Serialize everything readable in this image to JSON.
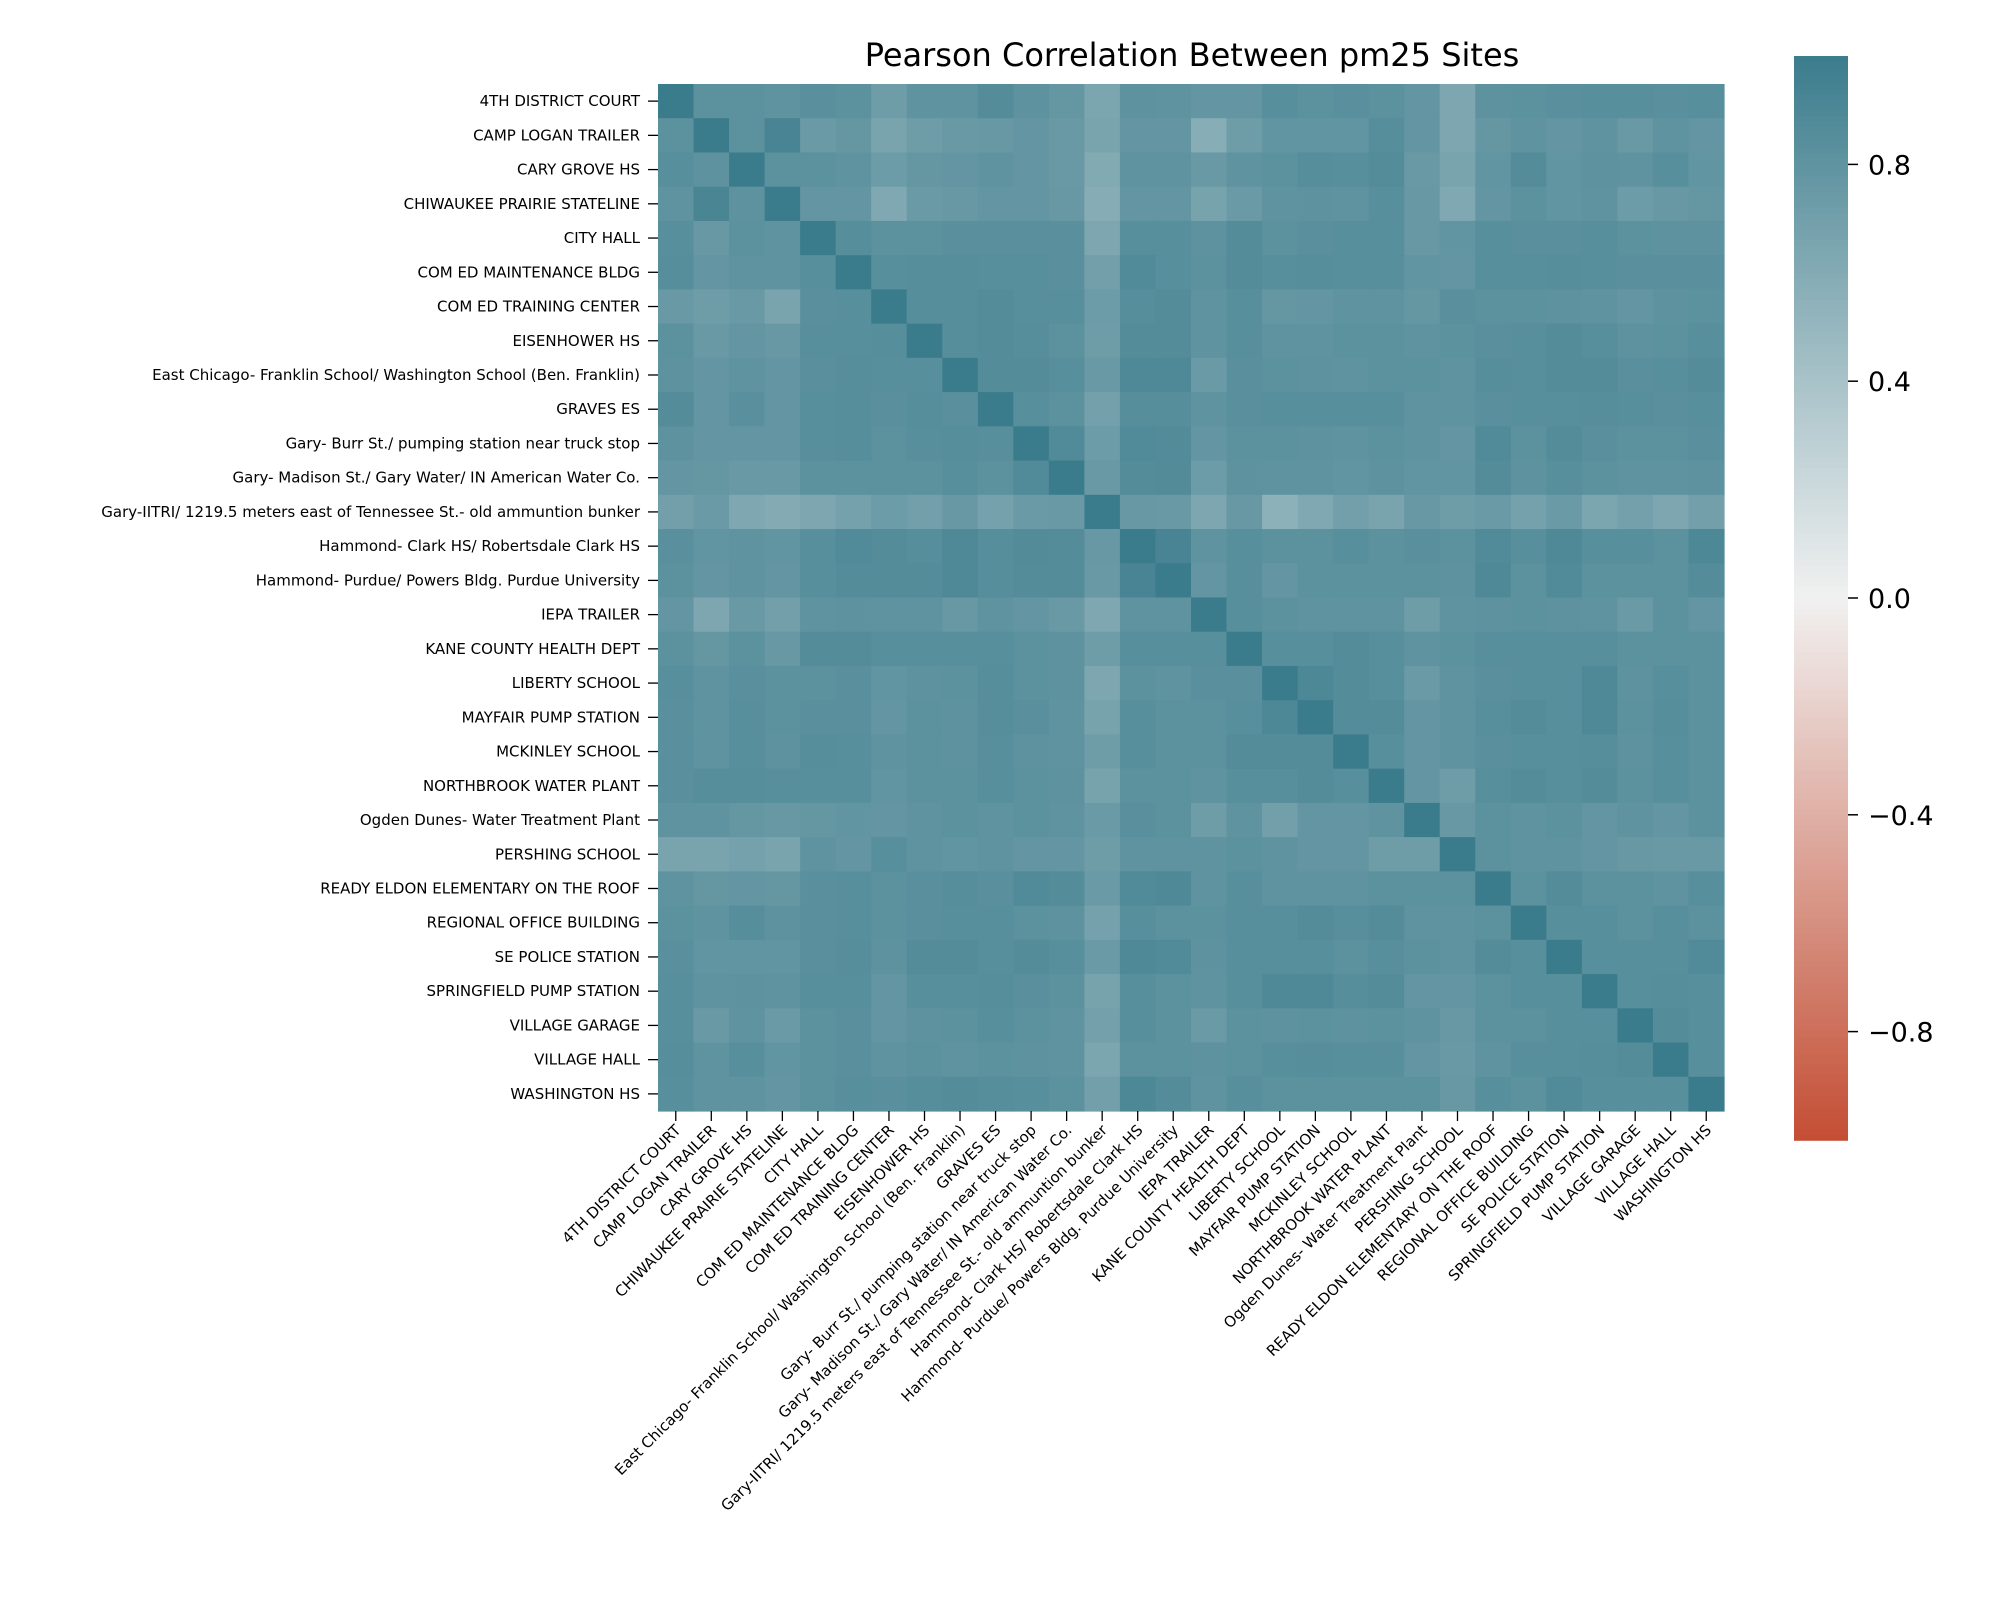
{
  "chart_data": {
    "type": "heatmap",
    "title": "Pearson Correlation Between pm25 Sites",
    "labels": [
      "4TH DISTRICT COURT",
      "CAMP LOGAN TRAILER",
      "CARY GROVE HS",
      "CHIWAUKEE PRAIRIE STATELINE",
      "CITY HALL",
      "COM ED MAINTENANCE BLDG",
      "COM ED TRAINING CENTER",
      "EISENHOWER HS",
      "East Chicago- Franklin School/ Washington School (Ben. Franklin)",
      "GRAVES ES",
      "Gary- Burr St./ pumping station near truck stop",
      "Gary- Madison St./ Gary Water/ IN American Water Co.",
      "Gary-IITRI/ 1219.5 meters east of Tennessee St.- old ammuntion bunker",
      "Hammond- Clark HS/ Robertsdale Clark HS",
      "Hammond- Purdue/ Powers Bldg. Purdue University",
      "IEPA TRAILER",
      "KANE COUNTY HEALTH DEPT",
      "LIBERTY SCHOOL",
      "MAYFAIR PUMP STATION",
      "MCKINLEY SCHOOL",
      "NORTHBROOK WATER PLANT",
      "Ogden Dunes- Water Treatment Plant",
      "PERSHING SCHOOL",
      "READY ELDON ELEMENTARY ON THE ROOF",
      "REGIONAL OFFICE BUILDING",
      "SE POLICE STATION",
      "SPRINGFIELD PUMP STATION",
      "VILLAGE GARAGE",
      "VILLAGE HALL",
      "WASHINGTON HS"
    ],
    "matrix": [
      [
        1.0,
        0.82,
        0.82,
        0.8,
        0.83,
        0.82,
        0.72,
        0.8,
        0.8,
        0.86,
        0.81,
        0.77,
        0.65,
        0.81,
        0.8,
        0.78,
        0.78,
        0.84,
        0.82,
        0.83,
        0.82,
        0.78,
        0.64,
        0.81,
        0.82,
        0.83,
        0.84,
        0.84,
        0.83,
        0.84
      ],
      [
        0.82,
        1.0,
        0.82,
        0.93,
        0.74,
        0.77,
        0.66,
        0.72,
        0.75,
        0.76,
        0.78,
        0.75,
        0.66,
        0.78,
        0.78,
        0.58,
        0.72,
        0.79,
        0.79,
        0.79,
        0.85,
        0.78,
        0.64,
        0.77,
        0.8,
        0.78,
        0.8,
        0.75,
        0.8,
        0.78
      ],
      [
        0.84,
        0.81,
        1.0,
        0.82,
        0.82,
        0.8,
        0.73,
        0.77,
        0.78,
        0.8,
        0.78,
        0.75,
        0.61,
        0.8,
        0.8,
        0.75,
        0.8,
        0.82,
        0.85,
        0.84,
        0.86,
        0.75,
        0.66,
        0.79,
        0.86,
        0.79,
        0.81,
        0.8,
        0.84,
        0.79
      ],
      [
        0.8,
        0.92,
        0.81,
        1.0,
        0.78,
        0.78,
        0.62,
        0.74,
        0.76,
        0.78,
        0.78,
        0.76,
        0.59,
        0.78,
        0.78,
        0.67,
        0.74,
        0.8,
        0.81,
        0.8,
        0.84,
        0.76,
        0.62,
        0.78,
        0.82,
        0.79,
        0.8,
        0.73,
        0.76,
        0.77
      ],
      [
        0.84,
        0.76,
        0.82,
        0.8,
        1.0,
        0.85,
        0.82,
        0.82,
        0.83,
        0.83,
        0.83,
        0.83,
        0.64,
        0.84,
        0.84,
        0.81,
        0.86,
        0.82,
        0.83,
        0.84,
        0.84,
        0.76,
        0.79,
        0.84,
        0.83,
        0.83,
        0.84,
        0.82,
        0.81,
        0.81
      ],
      [
        0.85,
        0.78,
        0.8,
        0.8,
        0.84,
        1.0,
        0.84,
        0.85,
        0.85,
        0.84,
        0.84,
        0.83,
        0.7,
        0.88,
        0.84,
        0.82,
        0.86,
        0.84,
        0.85,
        0.84,
        0.84,
        0.79,
        0.78,
        0.84,
        0.84,
        0.85,
        0.84,
        0.83,
        0.83,
        0.83
      ],
      [
        0.75,
        0.72,
        0.75,
        0.66,
        0.83,
        0.84,
        1.0,
        0.85,
        0.85,
        0.86,
        0.84,
        0.84,
        0.73,
        0.85,
        0.86,
        0.8,
        0.84,
        0.77,
        0.78,
        0.8,
        0.8,
        0.77,
        0.83,
        0.82,
        0.82,
        0.81,
        0.8,
        0.78,
        0.81,
        0.82
      ],
      [
        0.82,
        0.75,
        0.78,
        0.76,
        0.84,
        0.84,
        0.85,
        1.0,
        0.85,
        0.86,
        0.85,
        0.82,
        0.72,
        0.86,
        0.86,
        0.8,
        0.84,
        0.8,
        0.8,
        0.82,
        0.82,
        0.8,
        0.82,
        0.83,
        0.84,
        0.86,
        0.84,
        0.81,
        0.82,
        0.84
      ],
      [
        0.81,
        0.78,
        0.8,
        0.78,
        0.83,
        0.85,
        0.84,
        0.84,
        1.0,
        0.86,
        0.86,
        0.84,
        0.75,
        0.89,
        0.89,
        0.74,
        0.83,
        0.82,
        0.81,
        0.8,
        0.82,
        0.82,
        0.8,
        0.85,
        0.84,
        0.86,
        0.86,
        0.83,
        0.84,
        0.86
      ],
      [
        0.86,
        0.78,
        0.83,
        0.78,
        0.84,
        0.85,
        0.83,
        0.85,
        0.83,
        1.0,
        0.84,
        0.82,
        0.69,
        0.85,
        0.85,
        0.8,
        0.83,
        0.84,
        0.84,
        0.84,
        0.84,
        0.8,
        0.8,
        0.83,
        0.84,
        0.84,
        0.85,
        0.84,
        0.83,
        0.84
      ],
      [
        0.81,
        0.78,
        0.78,
        0.78,
        0.84,
        0.85,
        0.82,
        0.84,
        0.85,
        0.84,
        1.0,
        0.88,
        0.73,
        0.88,
        0.87,
        0.78,
        0.82,
        0.82,
        0.81,
        0.8,
        0.82,
        0.8,
        0.78,
        0.88,
        0.82,
        0.86,
        0.83,
        0.82,
        0.82,
        0.83
      ],
      [
        0.78,
        0.77,
        0.75,
        0.75,
        0.82,
        0.82,
        0.82,
        0.82,
        0.84,
        0.82,
        0.88,
        1.0,
        0.75,
        0.86,
        0.87,
        0.73,
        0.81,
        0.8,
        0.8,
        0.79,
        0.81,
        0.79,
        0.79,
        0.86,
        0.81,
        0.84,
        0.82,
        0.8,
        0.8,
        0.81
      ],
      [
        0.7,
        0.74,
        0.63,
        0.6,
        0.64,
        0.68,
        0.73,
        0.7,
        0.76,
        0.68,
        0.74,
        0.75,
        1.0,
        0.76,
        0.75,
        0.64,
        0.76,
        0.55,
        0.62,
        0.7,
        0.66,
        0.76,
        0.72,
        0.74,
        0.68,
        0.74,
        0.65,
        0.69,
        0.64,
        0.7
      ],
      [
        0.83,
        0.79,
        0.8,
        0.79,
        0.84,
        0.88,
        0.86,
        0.85,
        0.89,
        0.85,
        0.87,
        0.86,
        0.76,
        1.0,
        0.93,
        0.8,
        0.84,
        0.82,
        0.82,
        0.84,
        0.82,
        0.83,
        0.82,
        0.88,
        0.84,
        0.89,
        0.84,
        0.84,
        0.82,
        0.9
      ],
      [
        0.82,
        0.78,
        0.8,
        0.78,
        0.84,
        0.86,
        0.86,
        0.86,
        0.89,
        0.85,
        0.86,
        0.86,
        0.75,
        0.93,
        1.0,
        0.78,
        0.84,
        0.78,
        0.82,
        0.82,
        0.82,
        0.82,
        0.81,
        0.89,
        0.82,
        0.88,
        0.82,
        0.82,
        0.82,
        0.86
      ],
      [
        0.78,
        0.64,
        0.75,
        0.7,
        0.8,
        0.81,
        0.8,
        0.8,
        0.76,
        0.8,
        0.78,
        0.75,
        0.63,
        0.8,
        0.8,
        1.0,
        0.84,
        0.82,
        0.8,
        0.8,
        0.8,
        0.72,
        0.8,
        0.81,
        0.82,
        0.81,
        0.8,
        0.74,
        0.82,
        0.78
      ],
      [
        0.82,
        0.77,
        0.82,
        0.76,
        0.86,
        0.86,
        0.84,
        0.84,
        0.84,
        0.84,
        0.82,
        0.81,
        0.72,
        0.84,
        0.84,
        0.84,
        1.0,
        0.84,
        0.84,
        0.86,
        0.84,
        0.8,
        0.82,
        0.84,
        0.84,
        0.84,
        0.84,
        0.82,
        0.82,
        0.82
      ],
      [
        0.84,
        0.8,
        0.83,
        0.82,
        0.82,
        0.83,
        0.79,
        0.81,
        0.82,
        0.85,
        0.82,
        0.81,
        0.64,
        0.82,
        0.8,
        0.83,
        0.83,
        1.0,
        0.9,
        0.86,
        0.84,
        0.74,
        0.8,
        0.83,
        0.84,
        0.84,
        0.89,
        0.81,
        0.84,
        0.82
      ],
      [
        0.83,
        0.8,
        0.84,
        0.82,
        0.83,
        0.83,
        0.78,
        0.82,
        0.81,
        0.85,
        0.83,
        0.8,
        0.67,
        0.84,
        0.82,
        0.82,
        0.84,
        0.9,
        1.0,
        0.86,
        0.86,
        0.78,
        0.8,
        0.84,
        0.86,
        0.84,
        0.89,
        0.82,
        0.85,
        0.82
      ],
      [
        0.83,
        0.8,
        0.84,
        0.81,
        0.85,
        0.84,
        0.8,
        0.82,
        0.81,
        0.84,
        0.81,
        0.8,
        0.72,
        0.84,
        0.82,
        0.82,
        0.86,
        0.86,
        0.86,
        1.0,
        0.84,
        0.78,
        0.8,
        0.83,
        0.84,
        0.84,
        0.85,
        0.81,
        0.84,
        0.82
      ],
      [
        0.83,
        0.85,
        0.85,
        0.84,
        0.84,
        0.84,
        0.79,
        0.82,
        0.82,
        0.84,
        0.82,
        0.81,
        0.67,
        0.82,
        0.82,
        0.8,
        0.84,
        0.84,
        0.86,
        0.84,
        1.0,
        0.78,
        0.72,
        0.84,
        0.86,
        0.84,
        0.86,
        0.82,
        0.84,
        0.82
      ],
      [
        0.8,
        0.8,
        0.77,
        0.76,
        0.77,
        0.79,
        0.78,
        0.8,
        0.82,
        0.8,
        0.82,
        0.8,
        0.74,
        0.83,
        0.82,
        0.72,
        0.8,
        0.7,
        0.78,
        0.78,
        0.8,
        1.0,
        0.76,
        0.82,
        0.8,
        0.82,
        0.78,
        0.8,
        0.78,
        0.82
      ],
      [
        0.66,
        0.66,
        0.68,
        0.66,
        0.8,
        0.78,
        0.84,
        0.8,
        0.79,
        0.8,
        0.78,
        0.78,
        0.72,
        0.8,
        0.8,
        0.8,
        0.82,
        0.8,
        0.78,
        0.78,
        0.72,
        0.72,
        1.0,
        0.82,
        0.8,
        0.8,
        0.78,
        0.76,
        0.75,
        0.75
      ],
      [
        0.8,
        0.77,
        0.78,
        0.77,
        0.83,
        0.84,
        0.82,
        0.83,
        0.85,
        0.83,
        0.88,
        0.86,
        0.74,
        0.88,
        0.89,
        0.8,
        0.84,
        0.8,
        0.8,
        0.8,
        0.82,
        0.82,
        0.82,
        1.0,
        0.82,
        0.86,
        0.82,
        0.82,
        0.8,
        0.84
      ],
      [
        0.82,
        0.8,
        0.85,
        0.81,
        0.83,
        0.84,
        0.82,
        0.83,
        0.84,
        0.84,
        0.82,
        0.81,
        0.68,
        0.84,
        0.82,
        0.82,
        0.84,
        0.84,
        0.86,
        0.84,
        0.86,
        0.8,
        0.8,
        0.82,
        1.0,
        0.84,
        0.84,
        0.82,
        0.84,
        0.82
      ],
      [
        0.83,
        0.79,
        0.79,
        0.79,
        0.83,
        0.85,
        0.81,
        0.86,
        0.86,
        0.84,
        0.86,
        0.84,
        0.74,
        0.89,
        0.88,
        0.81,
        0.84,
        0.84,
        0.84,
        0.82,
        0.84,
        0.82,
        0.8,
        0.86,
        0.84,
        1.0,
        0.84,
        0.84,
        0.84,
        0.88
      ],
      [
        0.84,
        0.8,
        0.81,
        0.8,
        0.84,
        0.84,
        0.78,
        0.84,
        0.84,
        0.85,
        0.83,
        0.82,
        0.67,
        0.84,
        0.82,
        0.8,
        0.84,
        0.89,
        0.89,
        0.85,
        0.86,
        0.78,
        0.78,
        0.82,
        0.84,
        0.84,
        1.0,
        0.84,
        0.85,
        0.84
      ],
      [
        0.84,
        0.75,
        0.8,
        0.74,
        0.82,
        0.83,
        0.78,
        0.81,
        0.82,
        0.84,
        0.82,
        0.8,
        0.69,
        0.84,
        0.82,
        0.74,
        0.82,
        0.81,
        0.82,
        0.81,
        0.82,
        0.8,
        0.76,
        0.82,
        0.82,
        0.84,
        0.84,
        1.0,
        0.86,
        0.84
      ],
      [
        0.85,
        0.8,
        0.84,
        0.79,
        0.82,
        0.83,
        0.8,
        0.82,
        0.8,
        0.82,
        0.81,
        0.8,
        0.65,
        0.82,
        0.82,
        0.81,
        0.82,
        0.84,
        0.85,
        0.84,
        0.84,
        0.78,
        0.75,
        0.8,
        0.84,
        0.84,
        0.85,
        0.86,
        1.0,
        0.84
      ],
      [
        0.84,
        0.8,
        0.8,
        0.78,
        0.82,
        0.84,
        0.83,
        0.85,
        0.86,
        0.85,
        0.84,
        0.82,
        0.7,
        0.9,
        0.86,
        0.8,
        0.84,
        0.82,
        0.82,
        0.82,
        0.82,
        0.82,
        0.76,
        0.84,
        0.82,
        0.88,
        0.84,
        0.84,
        0.84,
        1.0
      ]
    ],
    "colorbar": {
      "range": [
        -1,
        1
      ],
      "ticks": [
        0.8,
        0.4,
        0.0,
        -0.4,
        -0.8
      ],
      "tick_labels": [
        "0.8",
        "0.4",
        "0.0",
        "−0.4",
        "−0.8"
      ],
      "colormap": "diverging",
      "low_color": "#c44e34",
      "mid_color": "#f1f1f1",
      "high_color": "#3b7c8c"
    },
    "xlabel": "",
    "ylabel": ""
  }
}
